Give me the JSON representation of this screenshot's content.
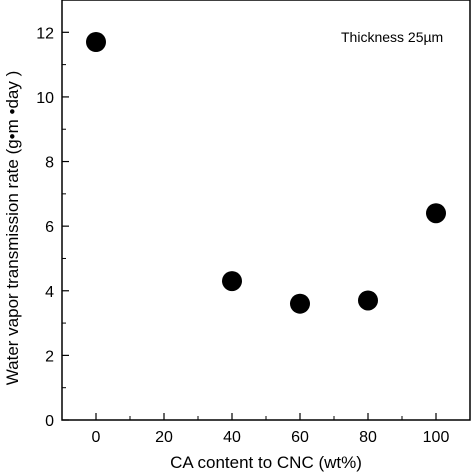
{
  "chart_data": {
    "type": "scatter",
    "xlabel": "CA content to CNC (wt%)",
    "ylabel": "Water vapor transmission rate (g•m  •day  )",
    "annotation": "Thickness 25µm",
    "xlim": [
      -10,
      110
    ],
    "ylim": [
      0,
      13
    ],
    "x_ticks": [
      0,
      20,
      40,
      60,
      80,
      100
    ],
    "y_ticks": [
      0,
      2,
      4,
      6,
      8,
      10,
      12
    ],
    "grid": false,
    "legend": "none",
    "marker_color": "#000000",
    "points": [
      {
        "x": 0,
        "y": 11.7
      },
      {
        "x": 40,
        "y": 4.3
      },
      {
        "x": 60,
        "y": 3.6
      },
      {
        "x": 80,
        "y": 3.7
      },
      {
        "x": 100,
        "y": 6.4
      }
    ]
  }
}
